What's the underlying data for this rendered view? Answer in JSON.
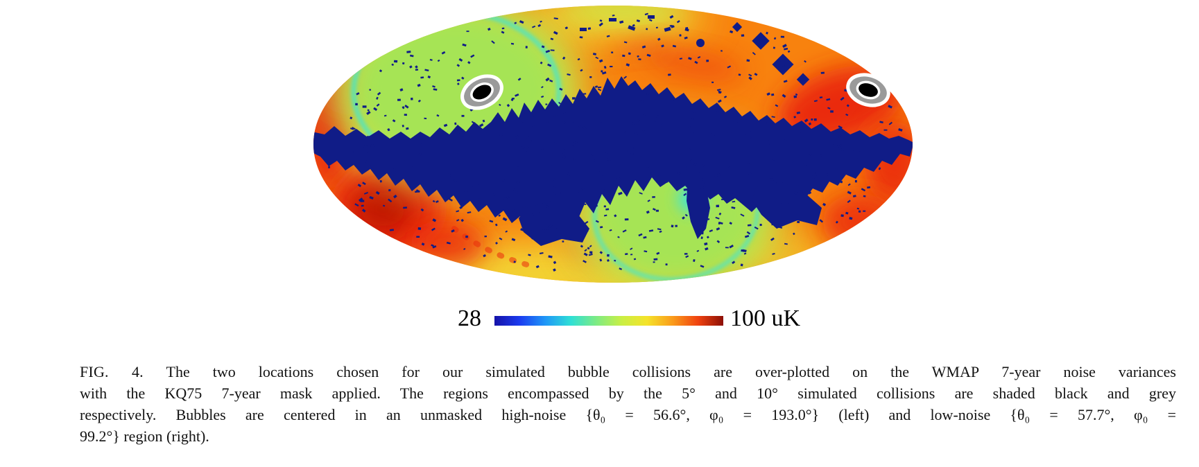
{
  "colorbar": {
    "min_label": "28",
    "max_label": "100 uK",
    "unit": "uK",
    "gradient_stops": [
      "#1512a8",
      "#1b3cf0",
      "#1f97f7",
      "#2fdfd5",
      "#7deb84",
      "#c9ef45",
      "#f5e32a",
      "#fa9c1b",
      "#f04310",
      "#8c0f06"
    ]
  },
  "caption": {
    "figure_label": "FIG. 4.",
    "lines": [
      "The two locations chosen for our simulated bubble collisions are over-plotted on the WMAP 7-year noise variances",
      "with the KQ75 7-year mask applied.  The regions encompassed by the 5° and 10° simulated collisions are shaded black and grey",
      "respectively.  Bubbles are centered in an unmasked high-noise {θ₀ = 56.6°, φ₀ = 193.0°} (left) and low-noise {θ₀ = 57.7°, φ₀ =",
      "99.2°} region (right)."
    ]
  },
  "map": {
    "markers": [
      {
        "name": "high-noise bubble (left)",
        "theta0": "56.6°",
        "phi0": "193.0°",
        "inner_shade": "black (5°)",
        "outer_shade": "grey (10°)"
      },
      {
        "name": "low-noise bubble (right)",
        "theta0": "57.7°",
        "phi0": "99.2°",
        "inner_shade": "black (5°)",
        "outer_shade": "grey (10°)"
      }
    ]
  },
  "colors": {
    "base_orange": "#f8820e",
    "red_hot": "#ea2c0c",
    "dark_red": "#bb1505",
    "yellow": "#f2e13a",
    "yellow_green": "#c8e94c",
    "green_low": "#a6e455",
    "cyan_ring": "#3ee6d8",
    "cyan_spot": "#30b6f5",
    "mask_navy": "#101c87",
    "marker_grey": "#9a9a9a",
    "marker_black": "#000000",
    "marker_white": "#ffffff",
    "caption_text": "#121212"
  }
}
